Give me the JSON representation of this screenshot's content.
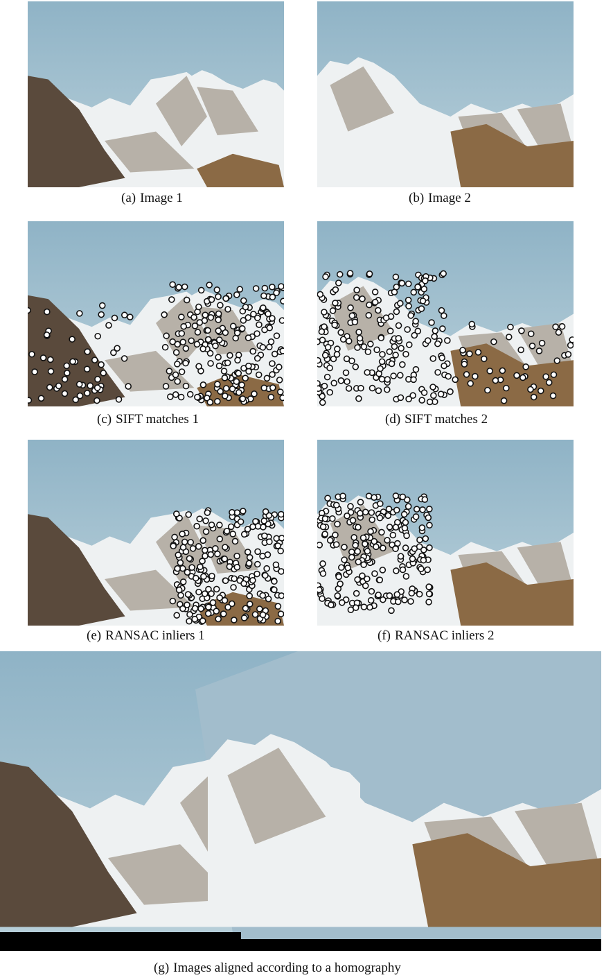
{
  "figure": {
    "panels": [
      {
        "id": "a",
        "label": "(a)",
        "text": "Image 1",
        "view": "left",
        "markers": "none"
      },
      {
        "id": "b",
        "label": "(b)",
        "text": "Image 2",
        "view": "right",
        "markers": "none"
      },
      {
        "id": "c",
        "label": "(c)",
        "text": "SIFT matches 1",
        "view": "left",
        "markers": "sift"
      },
      {
        "id": "d",
        "label": "(d)",
        "text": "SIFT matches 2",
        "view": "right",
        "markers": "sift"
      },
      {
        "id": "e",
        "label": "(e)",
        "text": "RANSAC inliers 1",
        "view": "left",
        "markers": "ransac"
      },
      {
        "id": "f",
        "label": "(f)",
        "text": "RANSAC inliers 2",
        "view": "right",
        "markers": "ransac"
      },
      {
        "id": "g",
        "label": "(g)",
        "text": "Images aligned according to a homography",
        "view": "panorama",
        "markers": "none"
      }
    ],
    "colors": {
      "sky_top": "#8fb3c6",
      "sky_bottom": "#b9d0da",
      "rock": "#5a4a3c",
      "snow": "#eef1f2",
      "marker_fill": "#ffffff",
      "marker_stroke": "#111111"
    }
  }
}
